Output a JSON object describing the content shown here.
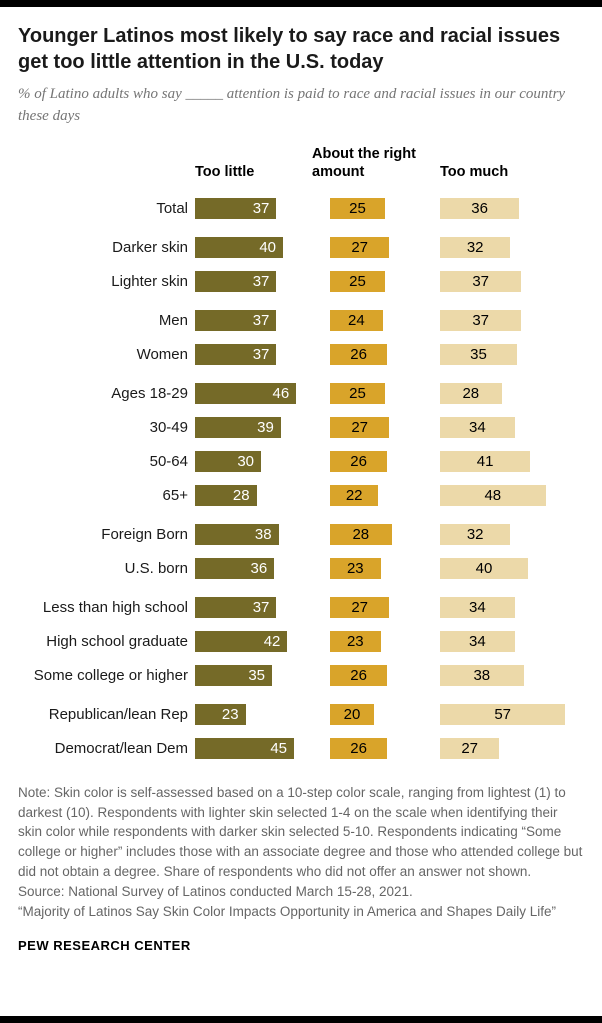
{
  "header": {
    "title": "Younger Latinos most likely to say race and racial issues get too little attention in the U.S. today",
    "subtitle": "% of Latino adults who say _____ attention is paid to race and racial issues in our country these days"
  },
  "chart_data": {
    "type": "bar",
    "orientation": "horizontal",
    "unit": "%",
    "value_labels": "inside",
    "xlim": [
      0,
      60
    ],
    "columns": [
      "Too little",
      "About the right amount",
      "Too much"
    ],
    "colors": {
      "too_little": "#756a28",
      "about_right": "#d9a42a",
      "too_much": "#ecd9a9"
    },
    "groups": [
      {
        "rows": [
          {
            "label": "Total",
            "values": [
              37,
              25,
              36
            ]
          }
        ]
      },
      {
        "rows": [
          {
            "label": "Darker skin",
            "values": [
              40,
              27,
              32
            ]
          },
          {
            "label": "Lighter skin",
            "values": [
              37,
              25,
              37
            ]
          }
        ]
      },
      {
        "rows": [
          {
            "label": "Men",
            "values": [
              37,
              24,
              37
            ]
          },
          {
            "label": "Women",
            "values": [
              37,
              26,
              35
            ]
          }
        ]
      },
      {
        "rows": [
          {
            "label": "Ages 18-29",
            "values": [
              46,
              25,
              28
            ]
          },
          {
            "label": "30-49",
            "values": [
              39,
              27,
              34
            ]
          },
          {
            "label": "50-64",
            "values": [
              30,
              26,
              41
            ]
          },
          {
            "label": "65+",
            "values": [
              28,
              22,
              48
            ]
          }
        ]
      },
      {
        "rows": [
          {
            "label": "Foreign Born",
            "values": [
              38,
              28,
              32
            ]
          },
          {
            "label": "U.S. born",
            "values": [
              36,
              23,
              40
            ]
          }
        ]
      },
      {
        "rows": [
          {
            "label": "Less than high school",
            "values": [
              37,
              27,
              34
            ]
          },
          {
            "label": "High school graduate",
            "values": [
              42,
              23,
              34
            ]
          },
          {
            "label": "Some college or higher",
            "values": [
              35,
              26,
              38
            ]
          }
        ]
      },
      {
        "rows": [
          {
            "label": "Republican/lean Rep",
            "values": [
              23,
              20,
              57
            ]
          },
          {
            "label": "Democrat/lean Dem",
            "values": [
              45,
              26,
              27
            ]
          }
        ]
      }
    ]
  },
  "footer": {
    "note": "Note: Skin color is self-assessed based on a 10-step color scale, ranging from lightest (1) to darkest (10). Respondents with lighter skin selected 1-4 on the scale when identifying their skin color while respondents with darker skin selected 5-10. Respondents indicating “Some college or higher” includes those with an associate degree and those who attended college but did not obtain a degree. Share of respondents who did not offer an answer not shown.",
    "source": "Source: National Survey of Latinos conducted March 15-28, 2021.",
    "quote": "“Majority of Latinos Say Skin Color Impacts Opportunity in America and Shapes Daily Life”",
    "brand": "PEW RESEARCH CENTER"
  }
}
